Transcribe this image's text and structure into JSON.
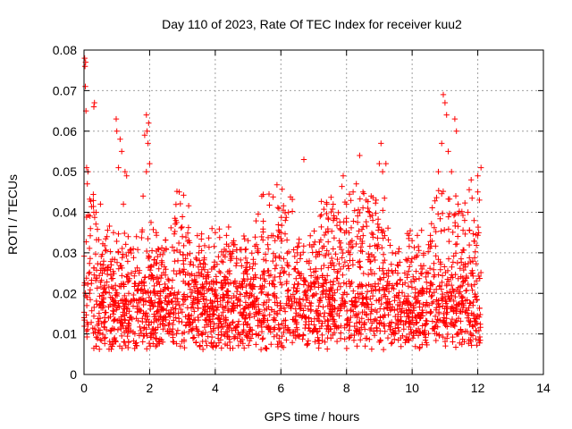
{
  "chart_data": {
    "type": "scatter",
    "title": "Day 110 of 2023, Rate Of TEC Index for receiver kuu2",
    "xlabel": "GPS time / hours",
    "ylabel": "ROTI / TECUs",
    "xlim": [
      0,
      14
    ],
    "ylim": [
      0,
      0.08
    ],
    "x_ticks": [
      0,
      2,
      4,
      6,
      8,
      10,
      12,
      14
    ],
    "y_ticks": [
      0,
      0.01,
      0.02,
      0.03,
      0.04,
      0.05,
      0.06,
      0.07,
      0.08
    ],
    "x_tick_labels": [
      "0",
      "2",
      "4",
      "6",
      "8",
      "10",
      "12",
      "14"
    ],
    "y_tick_labels": [
      "0",
      "0.01",
      "0.02",
      "0.03",
      "0.04",
      "0.05",
      "0.06",
      "0.07",
      "0.08"
    ],
    "grid": true,
    "marker": "plus",
    "color": "#ff0000",
    "points": [
      [
        0.02,
        0.078
      ],
      [
        0.03,
        0.076
      ],
      [
        0.05,
        0.077
      ],
      [
        0.04,
        0.071
      ],
      [
        0.06,
        0.065
      ],
      [
        0.08,
        0.051
      ],
      [
        0.1,
        0.047
      ],
      [
        0.12,
        0.05
      ],
      [
        0.3,
        0.066
      ],
      [
        0.32,
        0.067
      ],
      [
        0.3,
        0.04
      ],
      [
        0.5,
        0.042
      ],
      [
        0.7,
        0.034
      ],
      [
        0.9,
        0.035
      ],
      [
        0.98,
        0.063
      ],
      [
        1.0,
        0.06
      ],
      [
        1.05,
        0.051
      ],
      [
        1.1,
        0.058
      ],
      [
        1.15,
        0.055
      ],
      [
        1.2,
        0.042
      ],
      [
        1.25,
        0.05
      ],
      [
        1.3,
        0.049
      ],
      [
        1.6,
        0.034
      ],
      [
        1.8,
        0.044
      ],
      [
        1.85,
        0.059
      ],
      [
        1.9,
        0.064
      ],
      [
        1.92,
        0.06
      ],
      [
        1.95,
        0.057
      ],
      [
        1.97,
        0.062
      ],
      [
        2.0,
        0.052
      ],
      [
        1.9,
        0.05
      ],
      [
        2.2,
        0.035
      ],
      [
        2.5,
        0.031
      ],
      [
        2.8,
        0.038
      ],
      [
        2.9,
        0.045
      ],
      [
        3.0,
        0.034
      ],
      [
        3.2,
        0.033
      ],
      [
        3.5,
        0.03
      ],
      [
        3.9,
        0.036
      ],
      [
        4.0,
        0.035
      ],
      [
        4.3,
        0.029
      ],
      [
        4.6,
        0.032
      ],
      [
        5.0,
        0.033
      ],
      [
        5.3,
        0.031
      ],
      [
        5.6,
        0.032
      ],
      [
        5.9,
        0.034
      ],
      [
        6.0,
        0.035
      ],
      [
        6.2,
        0.027
      ],
      [
        6.5,
        0.03
      ],
      [
        6.7,
        0.053
      ],
      [
        7.0,
        0.032
      ],
      [
        7.2,
        0.039
      ],
      [
        7.4,
        0.042
      ],
      [
        7.6,
        0.038
      ],
      [
        7.8,
        0.036
      ],
      [
        7.9,
        0.049
      ],
      [
        8.0,
        0.042
      ],
      [
        8.2,
        0.045
      ],
      [
        8.3,
        0.047
      ],
      [
        8.4,
        0.054
      ],
      [
        8.5,
        0.045
      ],
      [
        8.6,
        0.043
      ],
      [
        8.65,
        0.041
      ],
      [
        8.7,
        0.04
      ],
      [
        8.75,
        0.044
      ],
      [
        8.8,
        0.038
      ],
      [
        8.9,
        0.043
      ],
      [
        9.0,
        0.052
      ],
      [
        9.05,
        0.057
      ],
      [
        9.1,
        0.05
      ],
      [
        9.2,
        0.052
      ],
      [
        9.4,
        0.03
      ],
      [
        9.6,
        0.031
      ],
      [
        10.0,
        0.033
      ],
      [
        10.3,
        0.026
      ],
      [
        10.5,
        0.032
      ],
      [
        10.8,
        0.05
      ],
      [
        10.9,
        0.057
      ],
      [
        10.95,
        0.069
      ],
      [
        11.0,
        0.067
      ],
      [
        11.05,
        0.064
      ],
      [
        11.1,
        0.055
      ],
      [
        11.2,
        0.05
      ],
      [
        11.3,
        0.063
      ],
      [
        11.35,
        0.06
      ],
      [
        11.4,
        0.042
      ],
      [
        11.6,
        0.038
      ],
      [
        11.7,
        0.04
      ],
      [
        11.8,
        0.048
      ],
      [
        12.0,
        0.045
      ],
      [
        12.05,
        0.043
      ],
      [
        12.1,
        0.051
      ],
      [
        12.0,
        0.049
      ]
    ],
    "dense_band": {
      "description_note": "Most points form a dense band between x=0 and x=12.1",
      "x_range": [
        0,
        12.1
      ],
      "y_typical": [
        0.002,
        0.03
      ]
    }
  }
}
